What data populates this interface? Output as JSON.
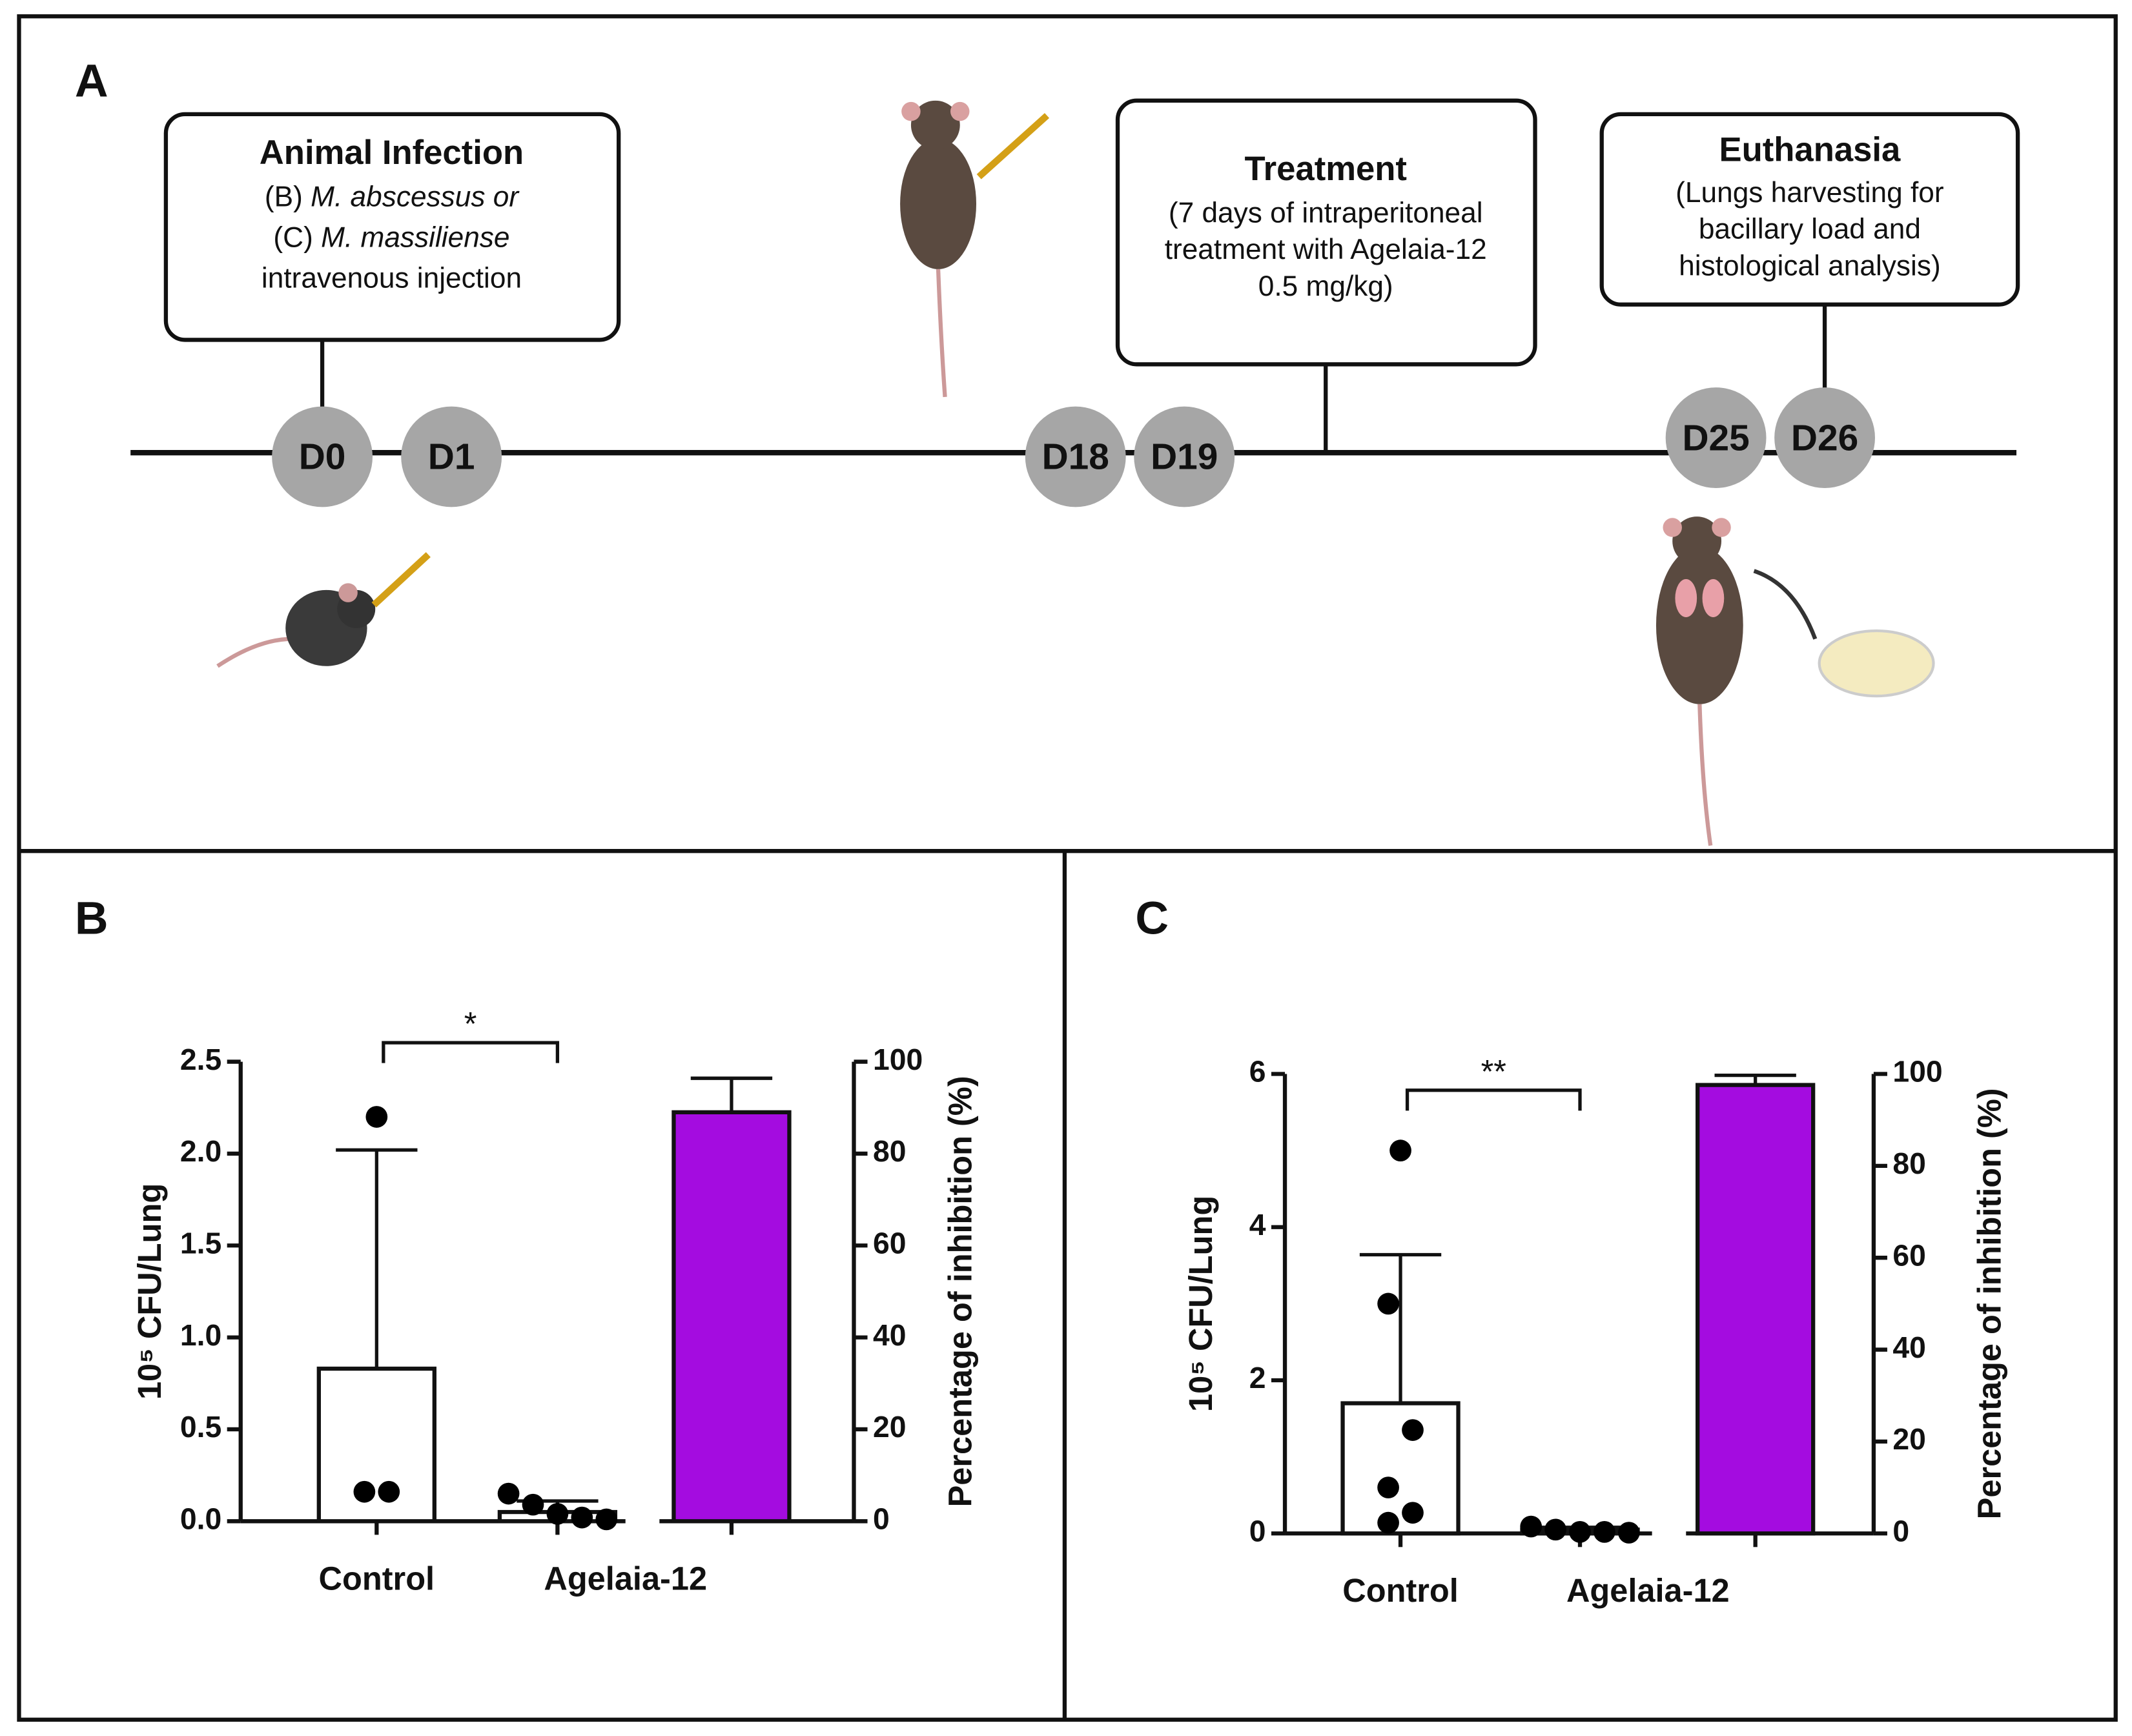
{
  "panel_a": {
    "label": "A",
    "boxes": [
      {
        "title": "Animal Infection",
        "lines": [
          {
            "text": "(B) ",
            "italic": "M. abscessus or"
          },
          {
            "text": "(C) ",
            "italic": "M. massiliense"
          },
          {
            "text": "intravenous injection"
          }
        ]
      },
      {
        "title": "Treatment",
        "lines": [
          {
            "text": "(7 days of intraperitoneal"
          },
          {
            "text": "treatment with Agelaia-12"
          },
          {
            "text": "0.5 mg/kg)"
          }
        ]
      },
      {
        "title": "Euthanasia",
        "lines": [
          {
            "text": "(Lungs harvesting for"
          },
          {
            "text": "bacillary load and"
          },
          {
            "text": "histological analysis)"
          }
        ]
      }
    ],
    "days": [
      "D0",
      "D1",
      "D18",
      "D19",
      "D25",
      "D26"
    ]
  },
  "chart_data": [
    {
      "type": "bar",
      "panel": "B",
      "y_label": "10⁵ CFU/Lung",
      "y2_label": "Percentage of inhibition (%)",
      "categories": [
        "Control",
        "Agelaia-12",
        null
      ],
      "series": [
        {
          "color": "#ffffff",
          "values": [
            0.83,
            0.05,
            null
          ],
          "errors": [
            1.19,
            0.06,
            null
          ]
        },
        {
          "axis": "y2",
          "color": "#a40ce0",
          "values": [
            null,
            null,
            89
          ],
          "errors": [
            null,
            null,
            7.4
          ]
        }
      ],
      "points": [
        [
          2.2,
          0.16,
          0.16
        ],
        [
          0.15,
          0.09,
          0.04,
          0.02,
          0.01
        ]
      ],
      "significance": "*",
      "ylim": [
        0,
        2.5
      ],
      "yticks": [
        {
          "value": 0,
          "label": "0.0"
        },
        0.5,
        {
          "value": 1,
          "label": "1.0"
        },
        1.5,
        {
          "value": 2,
          "label": "2.0"
        },
        2.5
      ],
      "y2lim": [
        0,
        100
      ],
      "y2ticks": [
        0,
        20,
        40,
        60,
        80,
        100
      ]
    },
    {
      "type": "bar",
      "panel": "C",
      "y_label": "10⁵ CFU/Lung",
      "y2_label": "Percentage of inhibition (%)",
      "categories": [
        "Control",
        "Agelaia-12",
        null
      ],
      "series": [
        {
          "color": "#ffffff",
          "values": [
            1.7,
            0.05,
            null
          ],
          "errors": [
            1.94,
            0.03,
            null
          ]
        },
        {
          "axis": "y2",
          "color": "#a40ce0",
          "values": [
            null,
            null,
            97.6
          ],
          "errors": [
            null,
            null,
            2.1
          ]
        }
      ],
      "points": [
        [
          5.0,
          3.0,
          1.35,
          0.6,
          0.27,
          0.14
        ],
        [
          0.09,
          0.05,
          0.02,
          0.02,
          0.01
        ]
      ],
      "significance": "**",
      "ylim": [
        0,
        6
      ],
      "yticks": [
        0,
        2,
        4,
        6
      ],
      "y2lim": [
        0,
        100
      ],
      "y2ticks": [
        0,
        20,
        40,
        60,
        80,
        100
      ]
    }
  ]
}
